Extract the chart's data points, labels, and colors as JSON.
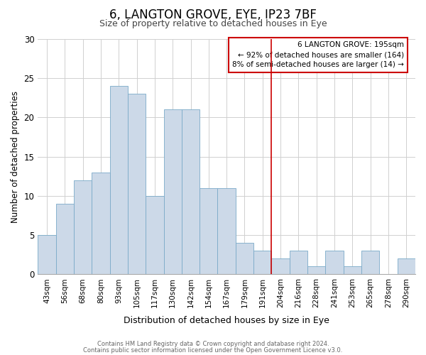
{
  "title": "6, LANGTON GROVE, EYE, IP23 7BF",
  "subtitle": "Size of property relative to detached houses in Eye",
  "xlabel": "Distribution of detached houses by size in Eye",
  "ylabel": "Number of detached properties",
  "bar_labels": [
    "43sqm",
    "56sqm",
    "68sqm",
    "80sqm",
    "93sqm",
    "105sqm",
    "117sqm",
    "130sqm",
    "142sqm",
    "154sqm",
    "167sqm",
    "179sqm",
    "191sqm",
    "204sqm",
    "216sqm",
    "228sqm",
    "241sqm",
    "253sqm",
    "265sqm",
    "278sqm",
    "290sqm"
  ],
  "bar_values": [
    5,
    9,
    12,
    13,
    24,
    23,
    10,
    21,
    21,
    11,
    11,
    4,
    3,
    2,
    3,
    1,
    3,
    1,
    3,
    0,
    2
  ],
  "bar_color": "#ccd9e8",
  "bar_edgecolor": "#7aaac8",
  "vline_x": 12.5,
  "vline_color": "#cc0000",
  "legend_title": "6 LANGTON GROVE: 195sqm",
  "legend_line1": "← 92% of detached houses are smaller (164)",
  "legend_line2": "8% of semi-detached houses are larger (14) →",
  "legend_box_facecolor": "#ffffff",
  "legend_box_edgecolor": "#cc0000",
  "footer1": "Contains HM Land Registry data © Crown copyright and database right 2024.",
  "footer2": "Contains public sector information licensed under the Open Government Licence v3.0.",
  "ylim": [
    0,
    30
  ],
  "yticks": [
    0,
    5,
    10,
    15,
    20,
    25,
    30
  ],
  "figsize": [
    6.0,
    5.0
  ],
  "dpi": 100,
  "background_color": "#ffffff",
  "grid_color": "#d0d0d0"
}
